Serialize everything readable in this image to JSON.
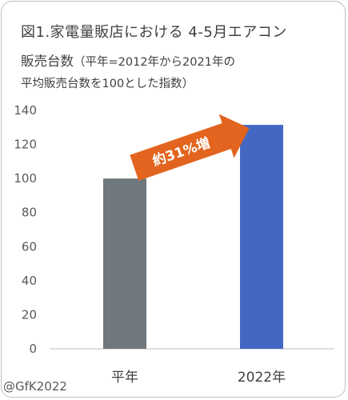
{
  "header": {
    "title": "図1.家電量販店における 4-5月エアコン",
    "subtitle_main": "販売台数",
    "subtitle_note_1": "（平年=2012年から2021年の",
    "subtitle_note_2": "平均販売台数を100とした指数）"
  },
  "copyright": "@GfK2022",
  "annotation": {
    "label": "約31%増",
    "color": "#E2641E"
  },
  "chart_data": {
    "type": "bar",
    "categories": [
      "平年",
      "2022年"
    ],
    "values": [
      100,
      131.5
    ],
    "bar_colors": [
      "#6E787D",
      "#4467C4"
    ],
    "ylim": [
      0,
      140
    ],
    "yticks": [
      0,
      20,
      40,
      60,
      80,
      100,
      120,
      140
    ],
    "grid": false
  }
}
